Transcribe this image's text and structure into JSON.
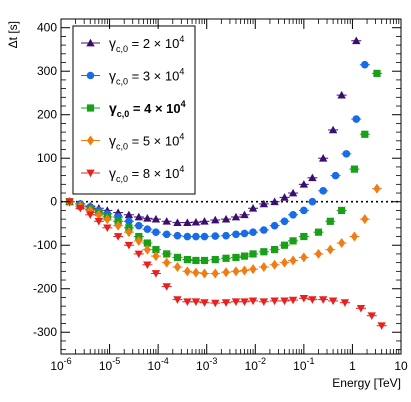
{
  "chart_data": {
    "type": "scatter",
    "xlabel": "Energy [TeV]",
    "ylabel": "Δt [s]",
    "xscale": "log",
    "xlim": [
      1e-06,
      10
    ],
    "ylim": [
      -350,
      420
    ],
    "x_ticks": [
      {
        "value": 1e-06,
        "base": "10",
        "exp": "-6"
      },
      {
        "value": 1e-05,
        "base": "10",
        "exp": "-5"
      },
      {
        "value": 0.0001,
        "base": "10",
        "exp": "-4"
      },
      {
        "value": 0.001,
        "base": "10",
        "exp": "-3"
      },
      {
        "value": 0.01,
        "base": "10",
        "exp": "-2"
      },
      {
        "value": 0.1,
        "base": "10",
        "exp": "-1"
      },
      {
        "value": 1,
        "base": "1",
        "exp": ""
      },
      {
        "value": 10,
        "base": "10",
        "exp": ""
      }
    ],
    "y_ticks": [
      -300,
      -200,
      -100,
      0,
      100,
      200,
      300,
      400
    ],
    "reference_line": {
      "y": 0,
      "style": "dotted"
    },
    "legend": {
      "position": "top-left"
    },
    "series": [
      {
        "name": "γc,0 = 2 × 10^4",
        "label_parts": [
          "γ",
          "c,0",
          " = 2 × 10",
          "4"
        ],
        "bold": false,
        "color": "#3b0f6f",
        "marker": "triangle-up",
        "x": [
          1.5e-06,
          2.5e-06,
          4e-06,
          6e-06,
          9e-06,
          1.5e-05,
          2.5e-05,
          4e-05,
          6e-05,
          9e-05,
          0.00015,
          0.00025,
          0.0004,
          0.0006,
          0.0009,
          0.0015,
          0.0025,
          0.004,
          0.006,
          0.009,
          0.015,
          0.025,
          0.04,
          0.06,
          0.1,
          0.15,
          0.25,
          0.4,
          0.6,
          1.2
        ],
        "y": [
          0,
          -5,
          -10,
          -15,
          -20,
          -25,
          -30,
          -35,
          -38,
          -40,
          -45,
          -48,
          -48,
          -47,
          -45,
          -42,
          -40,
          -35,
          -30,
          -15,
          -5,
          0,
          10,
          20,
          40,
          55,
          100,
          165,
          245,
          370
        ]
      },
      {
        "name": "γc,0 = 3 × 10^4",
        "label_parts": [
          "γ",
          "c,0",
          " = 3 × 10",
          "4"
        ],
        "bold": false,
        "color": "#1a6be6",
        "marker": "circle",
        "x": [
          1.5e-06,
          2.5e-06,
          4e-06,
          6e-06,
          9e-06,
          1.5e-05,
          2.5e-05,
          4e-05,
          6e-05,
          9e-05,
          0.00015,
          0.00025,
          0.0004,
          0.0006,
          0.0009,
          0.0015,
          0.0025,
          0.004,
          0.006,
          0.009,
          0.015,
          0.025,
          0.04,
          0.06,
          0.1,
          0.15,
          0.25,
          0.45,
          0.75,
          1.2,
          1.8
        ],
        "y": [
          0,
          -5,
          -12,
          -20,
          -28,
          -35,
          -45,
          -55,
          -63,
          -70,
          -75,
          -78,
          -80,
          -80,
          -80,
          -79,
          -78,
          -75,
          -73,
          -70,
          -65,
          -55,
          -45,
          -30,
          -20,
          0,
          25,
          60,
          110,
          190,
          315
        ]
      },
      {
        "name": "γc,0 = 4 × 10^4",
        "label_parts": [
          "γ",
          "c,0",
          " = 4 × 10",
          "4"
        ],
        "bold": true,
        "color": "#18a018",
        "marker": "square",
        "x": [
          1.5e-06,
          2.5e-06,
          4e-06,
          6e-06,
          9e-06,
          1.5e-05,
          2.5e-05,
          4e-05,
          6e-05,
          9e-05,
          0.00015,
          0.00025,
          0.0004,
          0.0006,
          0.0009,
          0.0015,
          0.0025,
          0.004,
          0.006,
          0.009,
          0.015,
          0.025,
          0.04,
          0.06,
          0.1,
          0.2,
          0.35,
          0.6,
          1.1,
          1.8,
          3.2
        ],
        "y": [
          0,
          -10,
          -18,
          -25,
          -35,
          -45,
          -60,
          -80,
          -95,
          -110,
          -120,
          -128,
          -133,
          -135,
          -135,
          -133,
          -130,
          -128,
          -125,
          -120,
          -115,
          -110,
          -100,
          -90,
          -80,
          -70,
          -45,
          -20,
          75,
          155,
          295
        ]
      },
      {
        "name": "γc,0 = 5 × 10^4",
        "label_parts": [
          "γ",
          "c,0",
          " = 5 × 10",
          "4"
        ],
        "bold": false,
        "color": "#f07c14",
        "marker": "diamond",
        "x": [
          1.5e-06,
          2.5e-06,
          4e-06,
          6e-06,
          9e-06,
          1.5e-05,
          2.5e-05,
          4e-05,
          6e-05,
          9e-05,
          0.00015,
          0.00025,
          0.0004,
          0.0006,
          0.0009,
          0.0015,
          0.0025,
          0.004,
          0.006,
          0.009,
          0.015,
          0.025,
          0.04,
          0.06,
          0.1,
          0.2,
          0.35,
          0.6,
          1.1,
          1.8,
          3.2
        ],
        "y": [
          0,
          -10,
          -20,
          -30,
          -40,
          -55,
          -70,
          -90,
          -110,
          -125,
          -140,
          -150,
          -160,
          -163,
          -165,
          -165,
          -162,
          -160,
          -158,
          -155,
          -150,
          -145,
          -140,
          -135,
          -128,
          -120,
          -110,
          -95,
          -80,
          -40,
          30
        ]
      },
      {
        "name": "γc,0 = 8 × 10^4",
        "label_parts": [
          "γ",
          "c,0",
          " = 8 × 10",
          "4"
        ],
        "bold": false,
        "color": "#e8201e",
        "marker": "triangle-down",
        "x": [
          1.5e-06,
          2.5e-06,
          4e-06,
          6e-06,
          9e-06,
          1.5e-05,
          2.5e-05,
          4e-05,
          6e-05,
          9e-05,
          0.00015,
          0.00025,
          0.0004,
          0.0006,
          0.0009,
          0.0015,
          0.0025,
          0.004,
          0.006,
          0.009,
          0.015,
          0.025,
          0.04,
          0.06,
          0.1,
          0.15,
          0.25,
          0.4,
          0.7,
          1.5,
          2.5,
          4
        ],
        "y": [
          0,
          -15,
          -30,
          -45,
          -60,
          -80,
          -100,
          -120,
          -145,
          -165,
          -195,
          -225,
          -230,
          -230,
          -232,
          -233,
          -232,
          -230,
          -230,
          -228,
          -230,
          -228,
          -228,
          -226,
          -222,
          -225,
          -225,
          -228,
          -232,
          -245,
          -262,
          -285
        ]
      }
    ]
  }
}
